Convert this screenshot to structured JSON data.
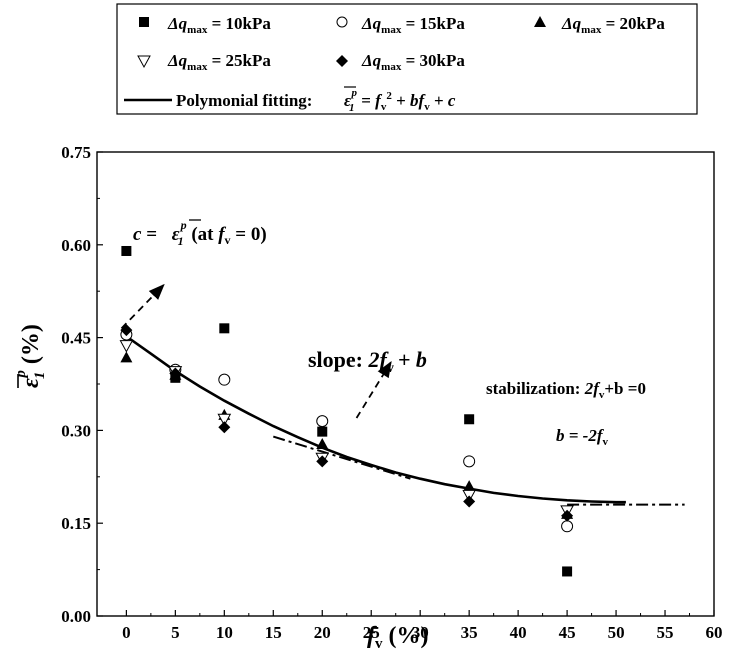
{
  "legend": {
    "entries": [
      {
        "prefix": "Δq",
        "sub": "max",
        "value": " = 10kPa",
        "marker": "square-filled"
      },
      {
        "prefix": "Δq",
        "sub": "max",
        "value": " = 15kPa",
        "marker": "circle-open"
      },
      {
        "prefix": "Δq",
        "sub": "max",
        "value": " = 20kPa",
        "marker": "triangle-up-filled"
      },
      {
        "prefix": "Δq",
        "sub": "max",
        "value": " = 25kPa",
        "marker": "triangle-down-open"
      },
      {
        "prefix": "Δq",
        "sub": "max",
        "value": " = 30kPa",
        "marker": "diamond-filled"
      }
    ],
    "fit_label": "Polymonial fitting:",
    "fit_eps": "ε",
    "fit_eps_sub": "1",
    "fit_eps_sup": "p",
    "fit_eq_eq": " = ",
    "fit_eq_f": "f",
    "fit_eq_sub": "v",
    "fit_eq_sup": "2",
    "fit_eq_plus1": " + ",
    "fit_eq_b": "bf",
    "fit_eq_sub2": "v",
    "fit_eq_plus2": " + ",
    "fit_eq_c": "c"
  },
  "annotations": {
    "c_label": "c = ",
    "c_eps": "ε",
    "c_eps_sub": "1",
    "c_eps_sup": "p",
    "c_at": " (at ",
    "c_f": "f",
    "c_f_sub": "v",
    "c_end": " = 0)",
    "slope_label": "slope: ",
    "slope_expr": "2f",
    "slope_sub": "v",
    "slope_end": "+ b",
    "stab_label": "stabilization: ",
    "stab_expr": "2f",
    "stab_sub": "v",
    "stab_end": "+b =0",
    "b_label": "b = -2f",
    "b_sub": "v"
  },
  "chart_data": {
    "type": "scatter",
    "xlabel": "f",
    "xlabel_sub": "v",
    "xlabel_unit": " (%)",
    "ylabel": "ε",
    "ylabel_sub": "1",
    "ylabel_sup": "p",
    "ylabel_unit": " (%)",
    "xlim": [
      -3,
      60
    ],
    "ylim": [
      0.0,
      0.75
    ],
    "x_ticks": [
      0,
      5,
      10,
      15,
      20,
      25,
      30,
      35,
      40,
      45,
      50,
      55,
      60
    ],
    "y_ticks": [
      0.0,
      0.15,
      0.3,
      0.45,
      0.6,
      0.75
    ],
    "y_tick_labels": [
      "0.00",
      "0.15",
      "0.30",
      "0.45",
      "0.60",
      "0.75"
    ],
    "series": [
      {
        "name": "Δqmax = 10kPa",
        "marker": "square-filled",
        "x": [
          0,
          5,
          10,
          20,
          35,
          45
        ],
        "y": [
          0.59,
          0.385,
          0.465,
          0.298,
          0.318,
          0.072
        ]
      },
      {
        "name": "Δqmax = 15kPa",
        "marker": "circle-open",
        "x": [
          0,
          5,
          10,
          20,
          35,
          45
        ],
        "y": [
          0.455,
          0.398,
          0.382,
          0.315,
          0.25,
          0.145
        ]
      },
      {
        "name": "Δqmax = 20kPa",
        "marker": "triangle-up-filled",
        "x": [
          0,
          5,
          10,
          20,
          35,
          45
        ],
        "y": [
          0.418,
          0.39,
          0.325,
          0.278,
          0.21,
          0.165
        ]
      },
      {
        "name": "Δqmax = 25kPa",
        "marker": "triangle-down-open",
        "x": [
          0,
          5,
          10,
          20,
          35,
          45
        ],
        "y": [
          0.437,
          0.395,
          0.318,
          0.255,
          0.195,
          0.17
        ]
      },
      {
        "name": "Δqmax = 30kPa",
        "marker": "diamond-filled",
        "x": [
          0,
          5,
          10,
          20,
          35,
          45
        ],
        "y": [
          0.462,
          0.392,
          0.305,
          0.25,
          0.185,
          0.162
        ]
      }
    ],
    "fit_curve": {
      "x": [
        0,
        2.5,
        5,
        7.5,
        10,
        12.5,
        15,
        17.5,
        20,
        22.5,
        25,
        27.5,
        30,
        32.5,
        35,
        37.5,
        40,
        42.5,
        45,
        47.5,
        50,
        51
      ],
      "y": [
        0.452,
        0.424,
        0.396,
        0.371,
        0.348,
        0.327,
        0.307,
        0.289,
        0.272,
        0.257,
        0.244,
        0.232,
        0.222,
        0.213,
        0.206,
        0.199,
        0.194,
        0.19,
        0.187,
        0.185,
        0.184,
        0.184
      ]
    },
    "tangent_lines": [
      {
        "x": [
          15,
          29
        ],
        "y": [
          0.29,
          0.222
        ]
      },
      {
        "x": [
          45,
          57
        ],
        "y": [
          0.18,
          0.18
        ]
      }
    ],
    "arrows": [
      {
        "x": [
          -0.5,
          3.8
        ],
        "y": [
          0.465,
          0.535
        ]
      },
      {
        "x": [
          23.5,
          27
        ],
        "y": [
          0.32,
          0.41
        ]
      }
    ]
  }
}
